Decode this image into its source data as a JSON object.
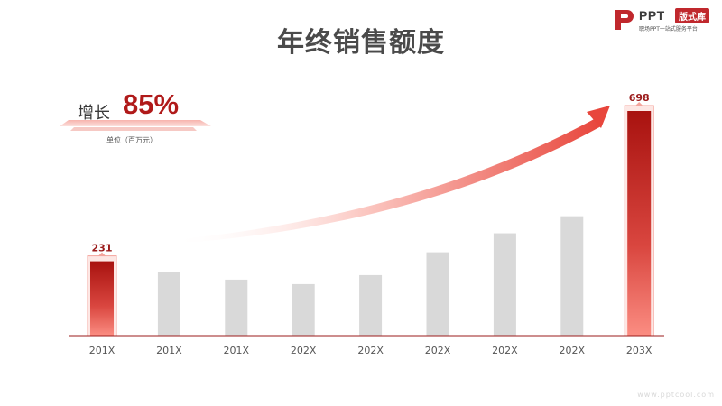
{
  "page": {
    "title": "年终销售额度"
  },
  "logo": {
    "brand": "PPT",
    "badge": "版式库",
    "tagline": "职场PPT一站式服务平台"
  },
  "growth": {
    "label": "增长",
    "value": "85%",
    "unit": "单位（百万元）"
  },
  "watermark": "www.pptcool.com",
  "colors": {
    "highlight": "#b01a1a",
    "highlight_light": "#f98a80",
    "neutral_bar": "#d9d9d9",
    "axis": "#9b1b1b",
    "arrow": "#e8463c"
  },
  "chart_data": {
    "type": "bar",
    "title": "年终销售额度",
    "categories": [
      "201X",
      "201X",
      "201X",
      "202X",
      "202X",
      "202X",
      "202X",
      "202X",
      "203X"
    ],
    "values": [
      231,
      198,
      174,
      160,
      188,
      259,
      318,
      371,
      698
    ],
    "highlighted": [
      0,
      8
    ],
    "data_labels": [
      "231",
      "",
      "",
      "",
      "",
      "",
      "",
      "",
      "698"
    ],
    "xlabel": "",
    "ylabel": "",
    "ylim": [
      0,
      698
    ],
    "grid": false,
    "legend": "none"
  }
}
